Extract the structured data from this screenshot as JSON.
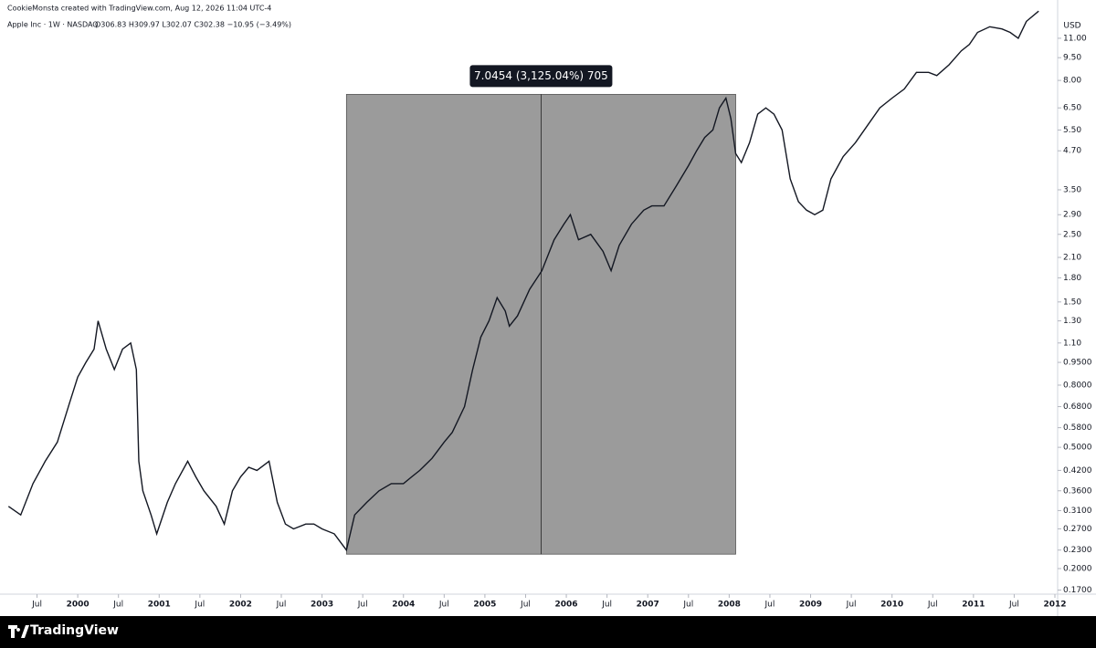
{
  "chart_data": {
    "type": "line",
    "credit": "CookieMonsta created with TradingView.com, Aug 12, 2026 11:04 UTC-4",
    "title": "Apple Inc · 1W · NASDAQ",
    "subtitle": "O306.83 H309.97 L302.07 C302.38 −10.95 (−3.49%)",
    "y_axis_label": "USD",
    "brand": "TradingView",
    "log_scale": true,
    "color": "#131722",
    "xlim": [
      1999.135,
      2012.0
    ],
    "ylim": [
      0.166,
      13.9
    ],
    "xticks": [
      {
        "value": 1999.5,
        "label": "Jul"
      },
      2000,
      {
        "value": 2000.5,
        "label": "Jul"
      },
      2001,
      {
        "value": 2001.5,
        "label": "Jul"
      },
      2002,
      {
        "value": 2002.5,
        "label": "Jul"
      },
      2003,
      {
        "value": 2003.5,
        "label": "Jul"
      },
      2004,
      {
        "value": 2004.5,
        "label": "Jul"
      },
      2005,
      {
        "value": 2005.5,
        "label": "Jul"
      },
      2006,
      {
        "value": 2006.5,
        "label": "Jul"
      },
      2007,
      {
        "value": 2007.5,
        "label": "Jul"
      },
      2008,
      {
        "value": 2008.5,
        "label": "Jul"
      },
      2009,
      {
        "value": 2009.5,
        "label": "Jul"
      },
      2010,
      {
        "value": 2010.5,
        "label": "Jul"
      },
      2011,
      {
        "value": 2011.5,
        "label": "Jul"
      },
      2012
    ],
    "yticks": [
      {
        "value": 11,
        "label": "11.00"
      },
      {
        "value": 9.5,
        "label": "9.50"
      },
      {
        "value": 8,
        "label": "8.00"
      },
      {
        "value": 6.5,
        "label": "6.50"
      },
      {
        "value": 5.5,
        "label": "5.50"
      },
      {
        "value": 4.7,
        "label": "4.70"
      },
      {
        "value": 3.5,
        "label": "3.50"
      },
      {
        "value": 2.9,
        "label": "2.90"
      },
      {
        "value": 2.5,
        "label": "2.50"
      },
      {
        "value": 2.1,
        "label": "2.10"
      },
      {
        "value": 1.8,
        "label": "1.80"
      },
      {
        "value": 1.5,
        "label": "1.50"
      },
      {
        "value": 1.3,
        "label": "1.30"
      },
      {
        "value": 1.1,
        "label": "1.10"
      },
      {
        "value": 0.95,
        "label": "0.9500"
      },
      {
        "value": 0.8,
        "label": "0.8000"
      },
      {
        "value": 0.68,
        "label": "0.6800"
      },
      {
        "value": 0.58,
        "label": "0.5800"
      },
      {
        "value": 0.5,
        "label": "0.5000"
      },
      {
        "value": 0.42,
        "label": "0.4200"
      },
      {
        "value": 0.36,
        "label": "0.3600"
      },
      {
        "value": 0.31,
        "label": "0.3100"
      },
      {
        "value": 0.27,
        "label": "0.2700"
      },
      {
        "value": 0.23,
        "label": "0.2300"
      },
      {
        "value": 0.2,
        "label": "0.2000"
      },
      {
        "value": 0.17,
        "label": "0.1700"
      }
    ],
    "x": [
      1999.15,
      1999.3,
      1999.45,
      1999.6,
      1999.75,
      1999.9,
      2000.0,
      2000.1,
      2000.2,
      2000.25,
      2000.35,
      2000.45,
      2000.55,
      2000.65,
      2000.72,
      2000.75,
      2000.8,
      2000.9,
      2000.97,
      2001.1,
      2001.2,
      2001.35,
      2001.45,
      2001.55,
      2001.7,
      2001.8,
      2001.9,
      2002.0,
      2002.1,
      2002.2,
      2002.35,
      2002.45,
      2002.55,
      2002.65,
      2002.8,
      2002.9,
      2003.0,
      2003.15,
      2003.3,
      2003.4,
      2003.55,
      2003.7,
      2003.85,
      2004.0,
      2004.1,
      2004.2,
      2004.35,
      2004.5,
      2004.6,
      2004.75,
      2004.85,
      2004.95,
      2005.05,
      2005.15,
      2005.25,
      2005.3,
      2005.4,
      2005.55,
      2005.7,
      2005.85,
      2005.97,
      2006.05,
      2006.15,
      2006.3,
      2006.45,
      2006.55,
      2006.65,
      2006.8,
      2006.95,
      2007.05,
      2007.2,
      2007.35,
      2007.5,
      2007.6,
      2007.7,
      2007.8,
      2007.88,
      2007.96,
      2008.02,
      2008.08,
      2008.15,
      2008.25,
      2008.35,
      2008.45,
      2008.55,
      2008.65,
      2008.75,
      2008.85,
      2008.95,
      2009.05,
      2009.15,
      2009.25,
      2009.4,
      2009.55,
      2009.7,
      2009.85,
      2010.0,
      2010.15,
      2010.3,
      2010.45,
      2010.55,
      2010.7,
      2010.85,
      2010.95,
      2011.05,
      2011.2,
      2011.35,
      2011.45,
      2011.55,
      2011.65,
      2011.8
    ],
    "values": [
      0.32,
      0.3,
      0.38,
      0.45,
      0.52,
      0.7,
      0.85,
      0.95,
      1.05,
      1.3,
      1.05,
      0.9,
      1.05,
      1.1,
      0.9,
      0.45,
      0.36,
      0.3,
      0.26,
      0.33,
      0.38,
      0.45,
      0.4,
      0.36,
      0.32,
      0.28,
      0.36,
      0.4,
      0.43,
      0.42,
      0.45,
      0.33,
      0.28,
      0.27,
      0.28,
      0.28,
      0.27,
      0.26,
      0.23,
      0.3,
      0.33,
      0.36,
      0.38,
      0.38,
      0.4,
      0.42,
      0.46,
      0.52,
      0.56,
      0.68,
      0.9,
      1.15,
      1.3,
      1.55,
      1.4,
      1.25,
      1.35,
      1.65,
      1.9,
      2.4,
      2.7,
      2.9,
      2.4,
      2.5,
      2.2,
      1.9,
      2.3,
      2.7,
      3.0,
      3.1,
      3.1,
      3.6,
      4.2,
      4.7,
      5.2,
      5.5,
      6.5,
      7.0,
      6.0,
      4.6,
      4.3,
      5.0,
      6.2,
      6.5,
      6.2,
      5.5,
      3.8,
      3.2,
      3.0,
      2.9,
      3.0,
      3.8,
      4.5,
      5.0,
      5.7,
      6.5,
      7.0,
      7.5,
      8.5,
      8.5,
      8.3,
      9.0,
      10.0,
      10.5,
      11.5,
      12.0,
      11.8,
      11.5,
      11.0,
      12.5,
      13.5
    ],
    "measure": {
      "label": "7.0454 (3,125.04%) 705",
      "x": [
        2003.3,
        2008.08
      ],
      "y": [
        0.223,
        7.2
      ]
    }
  }
}
